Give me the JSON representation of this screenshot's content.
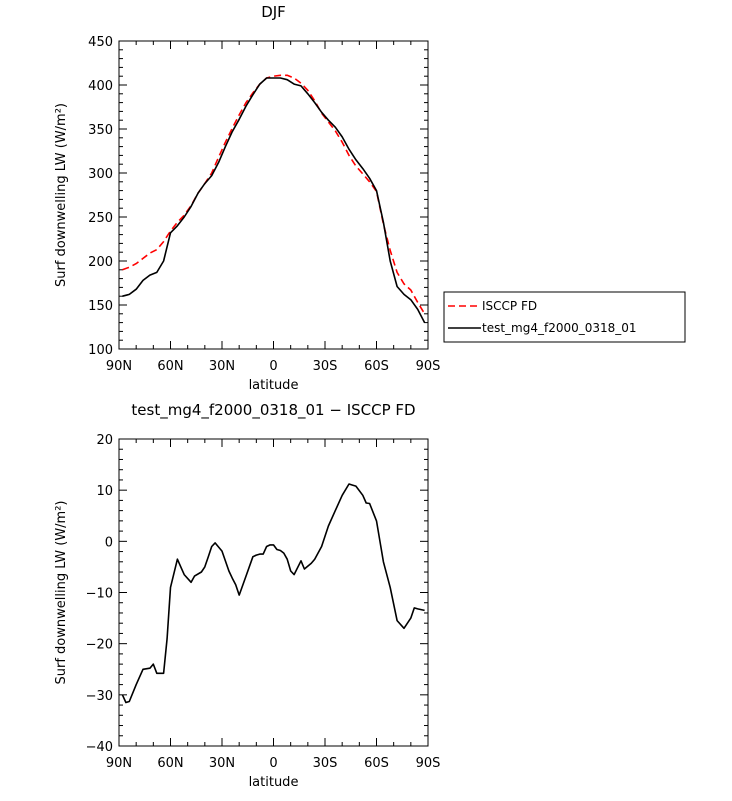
{
  "chart_data": [
    {
      "type": "line",
      "title": "DJF",
      "xlabel": "latitude",
      "ylabel": "Surf downwelling LW (W/m²)",
      "xlim": [
        -90,
        90
      ],
      "ylim": [
        100,
        450
      ],
      "x_tick_values": [
        -90,
        -60,
        -30,
        0,
        30,
        60,
        90
      ],
      "x_tick_labels": [
        "90N",
        "60N",
        "30N",
        "0",
        "30S",
        "60S",
        "90S"
      ],
      "y_tick_values": [
        100,
        150,
        200,
        250,
        300,
        350,
        400,
        450
      ],
      "y_tick_labels": [
        "100",
        "150",
        "200",
        "250",
        "300",
        "350",
        "400",
        "450"
      ],
      "legend_position": "right",
      "series": [
        {
          "name": "ISCCP FD",
          "color": "#ff0000",
          "dash": "dashed",
          "x": [
            -88,
            -84,
            -80,
            -76,
            -72,
            -68,
            -64,
            -60,
            -56,
            -52,
            -48,
            -44,
            -40,
            -36,
            -32,
            -28,
            -24,
            -20,
            -16,
            -12,
            -8,
            -4,
            0,
            4,
            8,
            12,
            16,
            20,
            24,
            28,
            32,
            36,
            40,
            44,
            48,
            52,
            56,
            60,
            64,
            68,
            72,
            76,
            80,
            84,
            88
          ],
          "y": [
            190,
            193,
            197,
            203,
            209,
            213,
            222,
            234,
            244,
            252,
            263,
            277,
            288,
            300,
            318,
            335,
            351,
            366,
            380,
            391,
            401,
            408,
            410,
            411,
            411,
            408,
            402,
            394,
            382,
            368,
            358,
            348,
            335,
            320,
            308,
            299,
            290,
            279,
            242,
            212,
            187,
            174,
            167,
            153,
            140
          ]
        },
        {
          "name": "test_mg4_f2000_0318_01",
          "color": "#000000",
          "dash": "solid",
          "x": [
            -88,
            -84,
            -80,
            -76,
            -72,
            -68,
            -64,
            -60,
            -56,
            -52,
            -48,
            -44,
            -40,
            -36,
            -32,
            -28,
            -24,
            -20,
            -16,
            -12,
            -8,
            -4,
            0,
            4,
            8,
            12,
            16,
            20,
            24,
            28,
            32,
            36,
            40,
            44,
            48,
            52,
            56,
            60,
            64,
            68,
            72,
            76,
            80,
            84,
            88
          ],
          "y": [
            160,
            162,
            168,
            178,
            184,
            187,
            200,
            232,
            240,
            250,
            262,
            277,
            288,
            297,
            312,
            330,
            347,
            361,
            376,
            389,
            401,
            408,
            408,
            408,
            406,
            401,
            399,
            390,
            380,
            369,
            360,
            352,
            341,
            327,
            315,
            305,
            294,
            280,
            244,
            200,
            171,
            162,
            156,
            145,
            130
          ]
        }
      ]
    },
    {
      "type": "line",
      "title": "test_mg4_f2000_0318_01 − ISCCP FD",
      "xlabel": "latitude",
      "ylabel": "Surf downwelling LW (W/m²)",
      "xlim": [
        -90,
        90
      ],
      "ylim": [
        -40,
        20
      ],
      "x_tick_values": [
        -90,
        -60,
        -30,
        0,
        30,
        60,
        90
      ],
      "x_tick_labels": [
        "90N",
        "60N",
        "30N",
        "0",
        "30S",
        "60S",
        "90S"
      ],
      "y_tick_values": [
        -40,
        -30,
        -20,
        -10,
        0,
        10,
        20
      ],
      "y_tick_labels": [
        "−40",
        "−30",
        "−20",
        "−10",
        "0",
        "10",
        "20"
      ],
      "series": [
        {
          "color": "#000000",
          "dash": "solid",
          "x": [
            -88,
            -86,
            -84,
            -80,
            -76,
            -72,
            -70,
            -68,
            -64,
            -62,
            -60,
            -56,
            -54,
            -52,
            -48,
            -46,
            -42,
            -40,
            -38,
            -36,
            -34,
            -30,
            -26,
            -24,
            -22,
            -20,
            -16,
            -12,
            -10,
            -8,
            -6,
            -4,
            -2,
            0,
            2,
            4,
            6,
            8,
            10,
            12,
            16,
            18,
            22,
            24,
            28,
            30,
            32,
            36,
            40,
            44,
            46,
            48,
            52,
            54,
            56,
            60,
            64,
            68,
            72,
            76,
            80,
            82,
            84,
            88
          ],
          "y": [
            -30,
            -31.5,
            -31.3,
            -28,
            -25,
            -24.8,
            -24,
            -25.8,
            -25.8,
            -19,
            -9,
            -3.5,
            -5,
            -6.5,
            -8,
            -6.8,
            -6,
            -5,
            -3,
            -1,
            -0.3,
            -1.9,
            -5.8,
            -7.2,
            -8.5,
            -10.5,
            -6.8,
            -3,
            -2.7,
            -2.5,
            -2.5,
            -1,
            -0.7,
            -0.7,
            -1.6,
            -1.8,
            -2.3,
            -3.5,
            -5.8,
            -6.5,
            -3.8,
            -5.4,
            -4.3,
            -3.5,
            -1,
            1,
            3,
            6,
            9,
            11.2,
            11,
            10.8,
            9,
            7.5,
            7.4,
            4,
            -4,
            -9,
            -15.5,
            -17,
            -15,
            -13,
            -13.2,
            -13.5
          ]
        }
      ]
    }
  ]
}
